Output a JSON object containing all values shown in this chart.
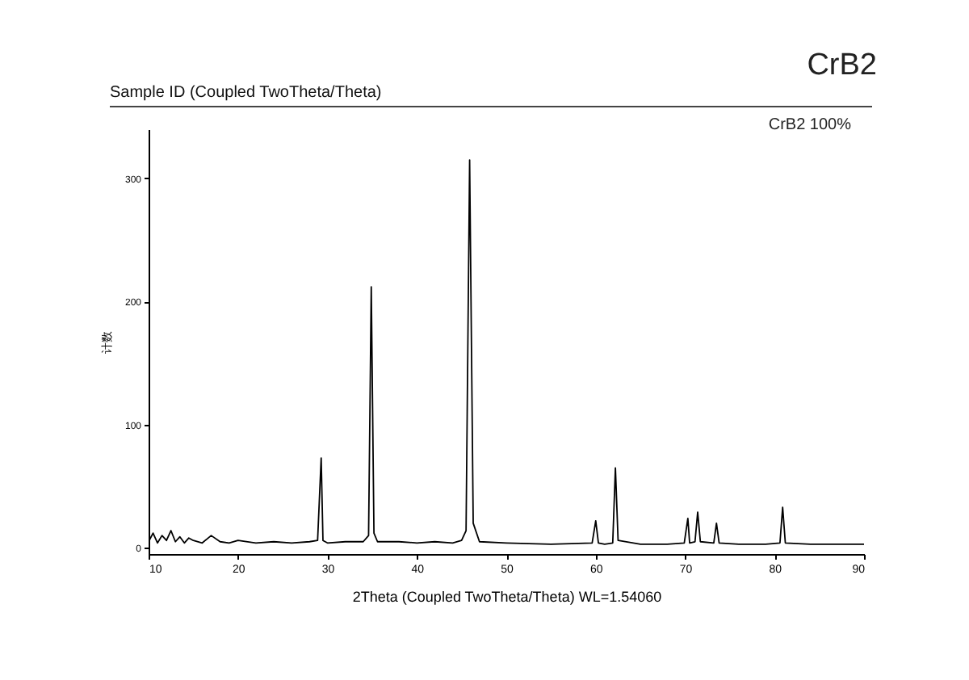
{
  "chart_data": {
    "type": "line",
    "title": "CrB2",
    "subtitle": "Sample ID (Coupled TwoTheta/Theta)",
    "xlabel": "2Theta (Coupled TwoTheta/Theta) WL=1.54060",
    "ylabel": "计数",
    "annotations": [
      "CrB2  100%"
    ],
    "xlim": [
      10,
      90
    ],
    "xticks": [
      10,
      20,
      30,
      40,
      50,
      60,
      70,
      80,
      90
    ],
    "ylim": [
      -5,
      340
    ],
    "yticks": [
      0,
      100,
      200,
      300
    ],
    "grid": false,
    "marker": "none",
    "line_style": "solid",
    "series": [
      {
        "color": "#000000",
        "x": [
          10,
          10.5,
          11,
          11.5,
          12,
          12.5,
          13,
          13.5,
          14,
          14.5,
          15,
          16,
          17,
          18,
          19,
          20,
          22,
          24,
          26,
          28,
          28.9,
          29.3,
          29.5,
          30,
          32,
          34,
          34.6,
          34.9,
          35.2,
          35.6,
          38,
          40,
          42,
          44,
          45,
          45.5,
          45.9,
          46.3,
          47,
          50,
          55,
          59.6,
          60.0,
          60.3,
          61,
          61.9,
          62.2,
          62.5,
          65,
          68,
          69.9,
          70.3,
          70.5,
          71.1,
          71.4,
          71.7,
          73.2,
          73.5,
          73.8,
          76,
          79,
          80.6,
          80.9,
          81.2,
          84,
          87,
          90
        ],
        "values": [
          5,
          12,
          4,
          10,
          6,
          14,
          5,
          9,
          4,
          8,
          6,
          4,
          10,
          5,
          4,
          6,
          4,
          5,
          4,
          5,
          6,
          73,
          6,
          4,
          5,
          5,
          10,
          212,
          12,
          5,
          5,
          4,
          5,
          4,
          6,
          14,
          315,
          20,
          5,
          4,
          3,
          4,
          22,
          4,
          3,
          4,
          65,
          6,
          3,
          3,
          4,
          24,
          4,
          5,
          29,
          5,
          4,
          20,
          4,
          3,
          3,
          4,
          33,
          4,
          3,
          3,
          3
        ]
      }
    ]
  }
}
